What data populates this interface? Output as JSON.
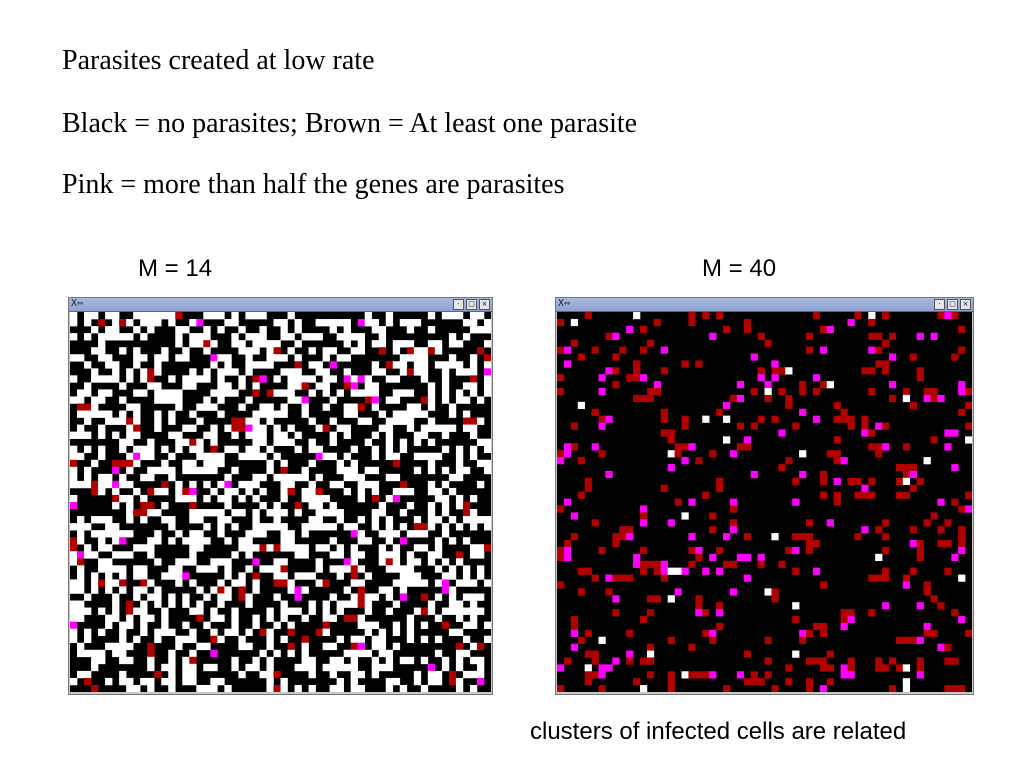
{
  "heading_lines": [
    "Parasites created at low rate",
    "Black = no parasites;  Brown = At least one parasite",
    "Pink = more than half the genes are parasites"
  ],
  "panels": [
    {
      "label": "M = 14",
      "colors": {
        "empty": "#000000",
        "free": "#ffffff",
        "infected": "#b00000",
        "majority": "#ff00ff"
      },
      "densities": {
        "free": 0.42,
        "infected": 0.035,
        "majority": 0.008
      }
    },
    {
      "label": "M = 40",
      "colors": {
        "empty": "#000000",
        "free": "#ffffff",
        "infected": "#b00000",
        "majority": "#ff00ff"
      },
      "densities": {
        "free": 0.012,
        "infected": 0.085,
        "majority": 0.035
      }
    }
  ],
  "caption": "clusters of infected cells are related",
  "window_controls": {
    "x_icon": "X-icon",
    "minimize": "·",
    "maximize": "□",
    "close": "×"
  }
}
